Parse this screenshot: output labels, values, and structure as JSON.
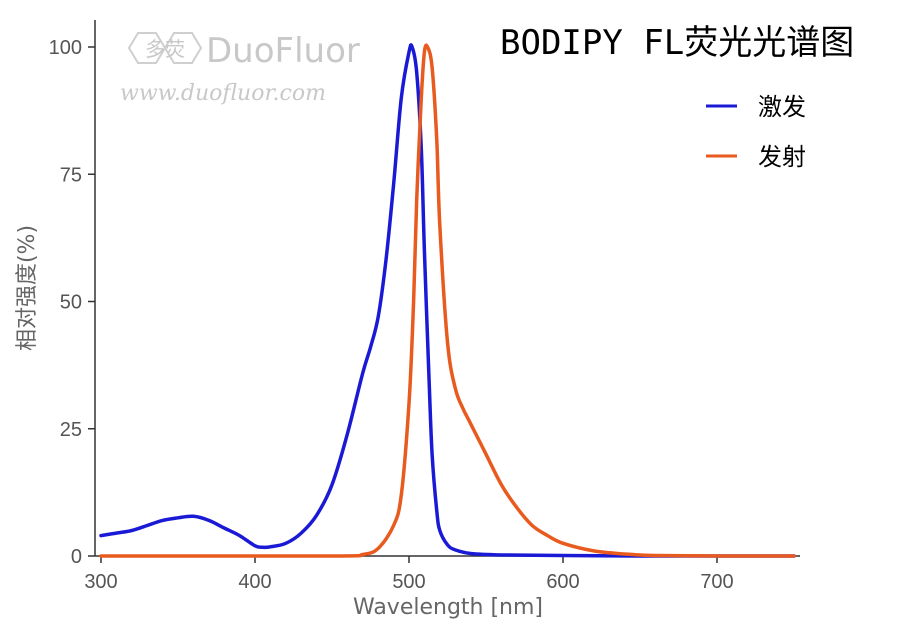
{
  "watermark": {
    "logo_text": "多荧",
    "brand": "DuoFluor",
    "url": "www.duofluor.com"
  },
  "chart_data": {
    "type": "line",
    "title": "BODIPY FL荧光光谱图",
    "xlabel": "Wavelength [nm]",
    "ylabel": "相对强度(%)",
    "xlim": [
      300,
      750
    ],
    "ylim": [
      0,
      100
    ],
    "xticks": [
      300,
      400,
      500,
      600,
      700
    ],
    "yticks": [
      0,
      25,
      50,
      75,
      100
    ],
    "grid": false,
    "legend_position": "top-right",
    "series": [
      {
        "name": "激发",
        "color": "#1a1ad6",
        "x": [
          300,
          310,
          320,
          330,
          340,
          350,
          360,
          370,
          380,
          390,
          400,
          405,
          410,
          420,
          430,
          440,
          450,
          460,
          470,
          475,
          480,
          485,
          490,
          495,
          500,
          502,
          505,
          508,
          510,
          513,
          515,
          518,
          520,
          525,
          530,
          540,
          560,
          600,
          650,
          750
        ],
        "y": [
          4,
          4.5,
          5,
          6,
          7,
          7.5,
          7.8,
          7,
          5.5,
          4,
          2,
          1.7,
          1.8,
          2.5,
          4.5,
          8,
          14,
          24,
          36,
          41,
          47,
          58,
          73,
          90,
          99,
          100,
          95,
          80,
          60,
          35,
          20,
          9,
          5,
          2.2,
          1.2,
          0.5,
          0.2,
          0.1,
          0,
          0
        ]
      },
      {
        "name": "发射",
        "color": "#e85a1e",
        "x": [
          300,
          450,
          470,
          480,
          490,
          495,
          500,
          503,
          505,
          508,
          510,
          512,
          515,
          518,
          520,
          525,
          530,
          535,
          540,
          550,
          560,
          570,
          580,
          590,
          600,
          620,
          640,
          660,
          700,
          750
        ],
        "y": [
          0,
          0,
          0.3,
          1.5,
          6,
          12,
          30,
          50,
          70,
          90,
          99,
          100,
          96,
          82,
          65,
          42,
          33,
          29,
          26,
          20,
          14,
          9.5,
          6,
          4,
          2.5,
          1,
          0.4,
          0.1,
          0,
          0
        ]
      }
    ]
  }
}
